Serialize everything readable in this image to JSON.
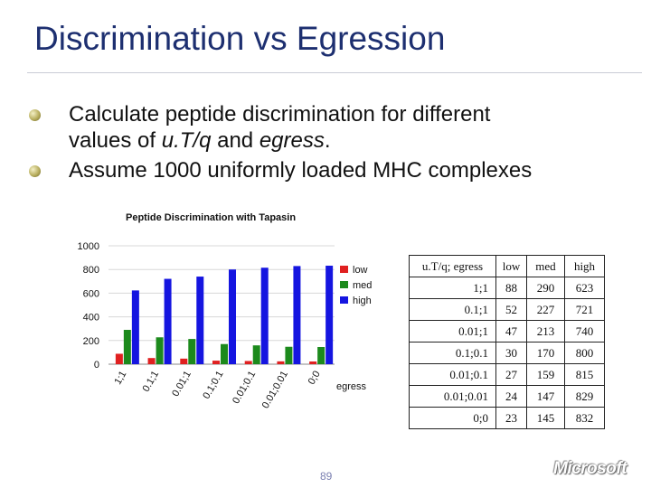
{
  "slide": {
    "title": "Discrimination vs Egression",
    "bullets": [
      [
        "Calculate peptide discrimination for different",
        "values of ",
        "u.T/q",
        " and ",
        "egress",
        "."
      ],
      "Assume 1000 uniformly loaded MHC complexes"
    ],
    "page_number": "89",
    "logo_text": "Microsoft"
  },
  "chart_data": {
    "type": "bar",
    "title": "Peptide Discrimination with Tapasin",
    "xlabel": "egress",
    "ylabel": "",
    "ylim": [
      0,
      1000
    ],
    "yticks": [
      0,
      200,
      400,
      600,
      800,
      1000
    ],
    "grid": true,
    "legend_position": "right",
    "categories": [
      "1;1",
      "0.1;1",
      "0.01;1",
      "0.1;0.1",
      "0.01;0.1",
      "0.01;0.01",
      "0;0"
    ],
    "series": [
      {
        "name": "low",
        "color": "#e02020",
        "values": [
          88,
          52,
          47,
          30,
          27,
          24,
          23
        ]
      },
      {
        "name": "med",
        "color": "#1c8a1c",
        "values": [
          290,
          227,
          213,
          170,
          159,
          147,
          145
        ]
      },
      {
        "name": "high",
        "color": "#1515e0",
        "values": [
          623,
          721,
          740,
          800,
          815,
          829,
          832
        ]
      }
    ]
  },
  "table": {
    "headers": [
      "u.T/q; egress",
      "low",
      "med",
      "high"
    ],
    "rows": [
      [
        "1;1",
        "88",
        "290",
        "623"
      ],
      [
        "0.1;1",
        "52",
        "227",
        "721"
      ],
      [
        "0.01;1",
        "47",
        "213",
        "740"
      ],
      [
        "0.1;0.1",
        "30",
        "170",
        "800"
      ],
      [
        "0.01;0.1",
        "27",
        "159",
        "815"
      ],
      [
        "0.01;0.01",
        "24",
        "147",
        "829"
      ],
      [
        "0;0",
        "23",
        "145",
        "832"
      ]
    ]
  }
}
